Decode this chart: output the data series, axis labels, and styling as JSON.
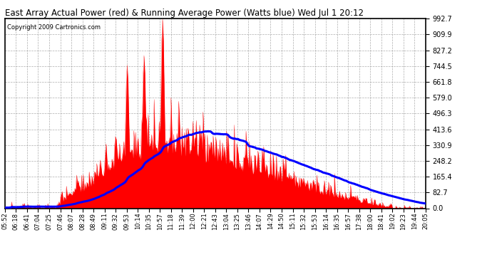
{
  "title": "East Array Actual Power (red) & Running Average Power (Watts blue) Wed Jul 1 20:12",
  "copyright": "Copyright 2009 Cartronics.com",
  "bg_color": "#ffffff",
  "plot_bg_color": "#ffffff",
  "grid_color": "#999999",
  "actual_color": "red",
  "avg_color": "blue",
  "yticks": [
    0.0,
    82.7,
    165.4,
    248.2,
    330.9,
    413.6,
    496.3,
    579.0,
    661.8,
    744.5,
    827.2,
    909.9,
    992.7
  ],
  "ylim": [
    0.0,
    992.7
  ],
  "x_labels": [
    "05:52",
    "06:18",
    "06:41",
    "07:04",
    "07:25",
    "07:46",
    "08:07",
    "08:28",
    "08:49",
    "09:11",
    "09:32",
    "09:53",
    "10:14",
    "10:35",
    "10:57",
    "11:18",
    "11:39",
    "12:00",
    "12:21",
    "12:43",
    "13:04",
    "13:25",
    "13:46",
    "14:07",
    "14:29",
    "14:50",
    "15:11",
    "15:32",
    "15:53",
    "16:14",
    "16:35",
    "16:57",
    "17:38",
    "18:00",
    "18:41",
    "19:02",
    "19:23",
    "19:44",
    "20:05"
  ]
}
